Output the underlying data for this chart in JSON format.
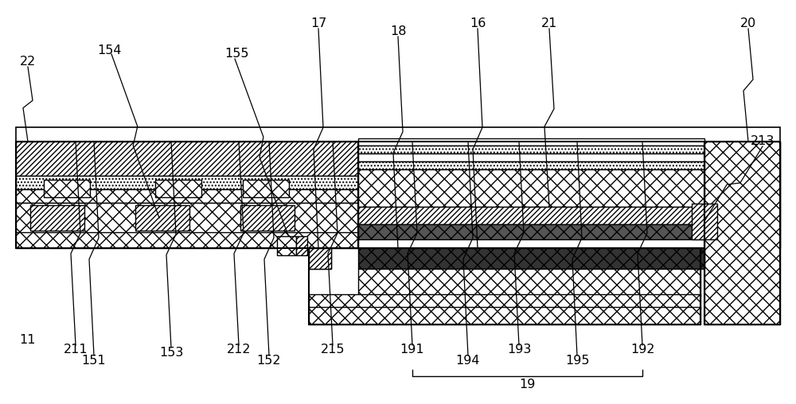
{
  "bg_color": "#ffffff",
  "fig_width": 10.0,
  "fig_height": 5.08,
  "dpi": 100
}
